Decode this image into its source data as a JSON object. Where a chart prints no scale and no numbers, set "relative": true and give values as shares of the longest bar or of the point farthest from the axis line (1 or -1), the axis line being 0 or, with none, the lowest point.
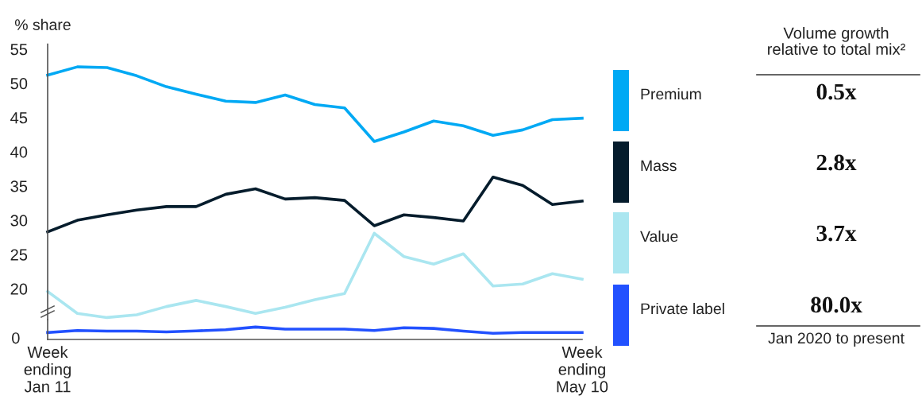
{
  "chart_data": [
    {
      "type": "line",
      "ylabel": "% share",
      "categories": [
        null,
        null,
        null,
        null,
        null,
        null,
        null,
        null,
        null,
        null,
        null,
        null,
        null,
        null,
        null,
        null,
        null,
        null,
        null
      ],
      "ylim": [
        15.5,
        55.7
      ],
      "yticks": [
        20,
        25,
        30,
        35,
        40,
        45,
        50,
        55
      ],
      "tick_labels": "y",
      "grid": false,
      "legend": "right",
      "marker": "none",
      "line_style": "solid",
      "series": [
        {
          "name": "Premium",
          "color": "#00a9f4",
          "values": [
            51.2,
            52.4,
            52.3,
            51.1,
            49.5,
            48.4,
            47.4,
            47.2,
            48.3,
            46.9,
            46.4,
            41.5,
            42.9,
            44.5,
            43.8,
            42.4,
            43.2,
            44.7,
            44.9
          ]
        },
        {
          "name": "Mass",
          "color": "#051c2c",
          "values": [
            28.3,
            30.0,
            30.8,
            31.5,
            32.0,
            32.0,
            33.8,
            34.6,
            33.1,
            33.3,
            32.9,
            29.2,
            30.8,
            30.4,
            29.9,
            36.3,
            35.1,
            32.3,
            32.8
          ]
        },
        {
          "name": "Value",
          "color": "#aae6f0",
          "values": [
            19.6,
            16.4,
            15.8,
            16.2,
            17.4,
            18.3,
            17.4,
            16.4,
            17.3,
            18.4,
            19.3,
            28.1,
            24.7,
            23.6,
            25.1,
            20.4,
            20.7,
            22.2,
            21.4
          ]
        }
      ]
    },
    {
      "type": "line",
      "categories": [
        "Week\nending\nJan 11",
        null,
        null,
        null,
        null,
        null,
        null,
        null,
        null,
        null,
        null,
        null,
        null,
        null,
        null,
        null,
        null,
        null,
        "Week\nending\nMay 10"
      ],
      "relative": true,
      "annotations": [
        "0"
      ],
      "grid": false,
      "legend": "right",
      "marker": "none",
      "line_style": "solid",
      "series": [
        {
          "name": "Private label",
          "color": "#2251ff",
          "values": [
            0.56,
            0.72,
            0.67,
            0.67,
            0.61,
            0.69,
            0.78,
            1,
            0.83,
            0.83,
            0.83,
            0.72,
            0.94,
            0.89,
            0.67,
            0.5,
            0.56,
            0.56,
            0.56
          ]
        }
      ]
    },
    {
      "type": "other",
      "title": "Volume growth\nrelative to total mix²",
      "annotations": [
        "0.5x",
        "2.8x",
        "3.7x",
        "80.0x",
        "Jan 2020 to present"
      ]
    }
  ]
}
